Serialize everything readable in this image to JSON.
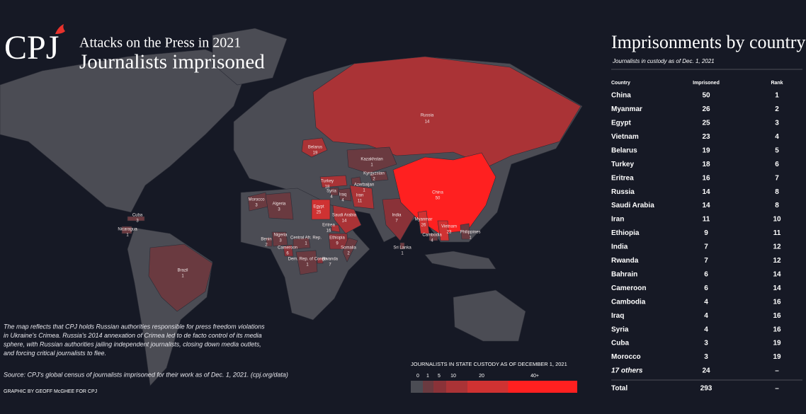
{
  "header": {
    "logo": "CPJ",
    "kicker": "Attacks on the Press in 2021",
    "title": "Journalists imprisoned"
  },
  "map": {
    "countries": [
      {
        "name": "Russia",
        "value": 14
      },
      {
        "name": "Belarus",
        "value": 19
      },
      {
        "name": "Kazakhstan",
        "value": 1
      },
      {
        "name": "Kyrgyzstan",
        "value": 2
      },
      {
        "name": "Azerbaijan",
        "value": 1
      },
      {
        "name": "Turkey",
        "value": 18
      },
      {
        "name": "Syria",
        "value": 4
      },
      {
        "name": "Iraq",
        "value": 4
      },
      {
        "name": "Iran",
        "value": 11
      },
      {
        "name": "Egypt",
        "value": 25
      },
      {
        "name": "Saudi Arabia",
        "value": 14
      },
      {
        "name": "Morocco",
        "value": 3
      },
      {
        "name": "Algeria",
        "value": 3
      },
      {
        "name": "Eritrea",
        "value": 16
      },
      {
        "name": "Ethiopia",
        "value": 9
      },
      {
        "name": "Somalia",
        "value": 2
      },
      {
        "name": "Rwanda",
        "value": 7
      },
      {
        "name": "India",
        "value": 7
      },
      {
        "name": "China",
        "value": 50
      },
      {
        "name": "Myanmar",
        "value": 26
      },
      {
        "name": "Vietnam",
        "value": 23
      },
      {
        "name": "Cambodia",
        "value": 4
      },
      {
        "name": "Philippines",
        "value": 1
      },
      {
        "name": "Sri Lanka",
        "value": 1
      },
      {
        "name": "Cuba",
        "value": 3
      },
      {
        "name": "Nicaragua",
        "value": 1
      },
      {
        "name": "Brazil",
        "value": 1
      },
      {
        "name": "Benin",
        "value": 2
      },
      {
        "name": "Nigeria",
        "value": 3
      },
      {
        "name": "Cameroon",
        "value": 6
      },
      {
        "name": "Central Afr. Rep.",
        "value": 1
      },
      {
        "name": "Dem. Rep. of Congo",
        "value": 1
      }
    ]
  },
  "legend": {
    "title": "JOURNALISTS IN STATE CUSTODY AS OF DECEMBER 1, 2021",
    "ticks": [
      0,
      1,
      5,
      10,
      20,
      {
        "value": 40,
        "label": "40+"
      }
    ],
    "colors": [
      "#4b4c54",
      "#6a3a40",
      "#8a3238",
      "#aa3336",
      "#cf3232",
      "#ff2020"
    ]
  },
  "note": {
    "lines": [
      "The map reflects that CPJ holds Russian authorities responsible for press freedom violations",
      "in Ukraine's Crimea. Russia's 2014 annexation of Crimea led to de facto control of its media",
      "sphere, with Russian authorities jailing independent journalists, closing down media outlets,",
      "and forcing critical journalists to flee."
    ],
    "source": "Source: CPJ's global census of journalists imprisoned for their work as of Dec. 1, 2021. (cpj.org/data)",
    "credit": "GRAPHIC BY GEOFF McGHEE FOR CPJ"
  },
  "table": {
    "title": "Imprisonments by country",
    "subtitle": "Journalists in custody as of Dec. 1, 2021",
    "columns": [
      "Country",
      "Imprisoned",
      "Rank"
    ],
    "rows": [
      [
        "China",
        50,
        1
      ],
      [
        "Myanmar",
        26,
        2
      ],
      [
        "Egypt",
        25,
        3
      ],
      [
        "Vietnam",
        23,
        4
      ],
      [
        "Belarus",
        19,
        5
      ],
      [
        "Turkey",
        18,
        6
      ],
      [
        "Eritrea",
        16,
        7
      ],
      [
        "Russia",
        14,
        8
      ],
      [
        "Saudi Arabia",
        14,
        8
      ],
      [
        "Iran",
        11,
        10
      ],
      [
        "Ethiopia",
        9,
        11
      ],
      [
        "India",
        7,
        12
      ],
      [
        "Rwanda",
        7,
        12
      ],
      [
        "Bahrain",
        6,
        14
      ],
      [
        "Cameroon",
        6,
        14
      ],
      [
        "Cambodia",
        4,
        16
      ],
      [
        "Iraq",
        4,
        16
      ],
      [
        "Syria",
        4,
        16
      ],
      [
        "Cuba",
        3,
        19
      ],
      [
        "Morocco",
        3,
        19
      ],
      [
        "17 others",
        24,
        "–"
      ]
    ],
    "total": [
      "Total",
      293,
      "–"
    ]
  }
}
